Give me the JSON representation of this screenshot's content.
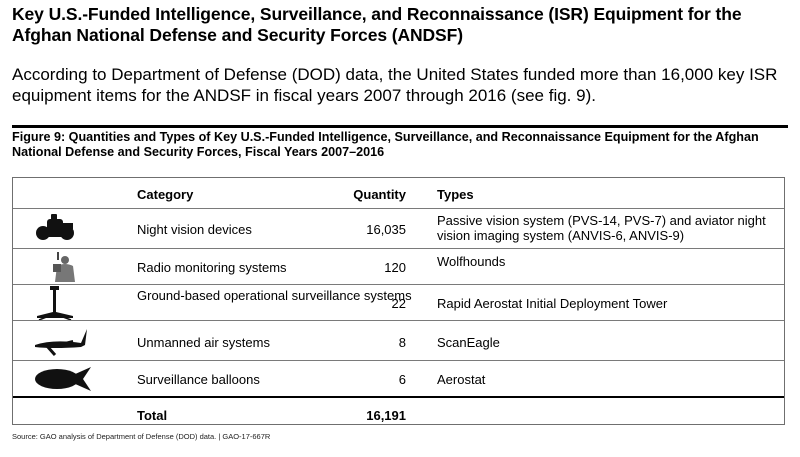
{
  "heading": "Key U.S.-Funded Intelligence, Surveillance, and Reconnaissance (ISR) Equipment for the Afghan National Defense and Security Forces (ANDSF)",
  "intro": "According to Department of Defense (DOD) data, the United States funded more than 16,000 key ISR equipment items for the ANDSF in fiscal years 2007 through 2016 (see fig. 9).",
  "figure_title": "Figure 9: Quantities and Types of Key U.S.-Funded Intelligence, Surveillance, and Reconnaissance Equipment for the Afghan National Defense and Security Forces, Fiscal Years 2007–2016",
  "table": {
    "headers": {
      "category": "Category",
      "quantity": "Quantity",
      "types": "Types"
    },
    "rows": [
      {
        "icon": "night-vision-icon",
        "category": "Night vision devices",
        "quantity": "16,035",
        "types": "Passive vision system (PVS-14, PVS-7) and aviator night vision imaging system (ANVIS-6, ANVIS-9)"
      },
      {
        "icon": "radio-monitoring-icon",
        "category": "Radio monitoring systems",
        "quantity": "120",
        "types": "Wolfhounds"
      },
      {
        "icon": "tower-icon",
        "category": "Ground-based operational surveillance systems",
        "quantity": "22",
        "types": "Rapid Aerostat Initial Deployment Tower"
      },
      {
        "icon": "drone-icon",
        "category": "Unmanned air systems",
        "quantity": "8",
        "types": "ScanEagle"
      },
      {
        "icon": "balloon-icon",
        "category": "Surveillance balloons",
        "quantity": "6",
        "types": "Aerostat"
      }
    ],
    "total": {
      "label": "Total",
      "quantity": "16,191"
    }
  },
  "source": "Source: GAO analysis of Department of Defense (DOD) data.  |  GAO-17-667R"
}
